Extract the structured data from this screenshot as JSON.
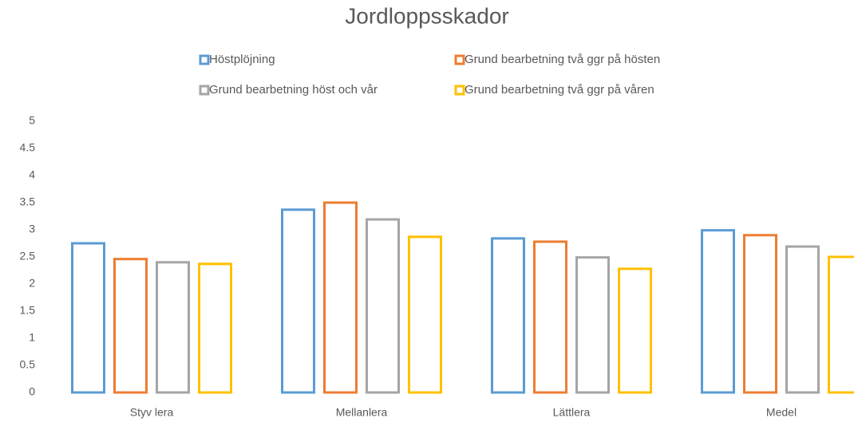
{
  "chart_data": {
    "type": "bar",
    "title": "Jordloppsskador",
    "categories": [
      "Styv lera",
      "Mellanlera",
      "Lättlera",
      "Medel"
    ],
    "series": [
      {
        "name": "Höstplöjning",
        "color": "#5b9bd5",
        "values": [
          2.75,
          3.37,
          2.84,
          2.99
        ]
      },
      {
        "name": "Grund bearbetning två ggr på hösten",
        "color": "#ed7d31",
        "values": [
          2.46,
          3.5,
          2.78,
          2.9
        ]
      },
      {
        "name": "Grund bearbetning höst och vår",
        "color": "#a5a5a5",
        "values": [
          2.4,
          3.19,
          2.49,
          2.69
        ]
      },
      {
        "name": "Grund bearbetning två ggr på våren",
        "color": "#ffc000",
        "values": [
          2.37,
          2.87,
          2.28,
          2.5
        ]
      }
    ],
    "ylim": [
      0,
      5
    ],
    "yticks": [
      0,
      0.5,
      1,
      1.5,
      2,
      2.5,
      3,
      3.5,
      4,
      4.5,
      5
    ],
    "grid": false
  }
}
